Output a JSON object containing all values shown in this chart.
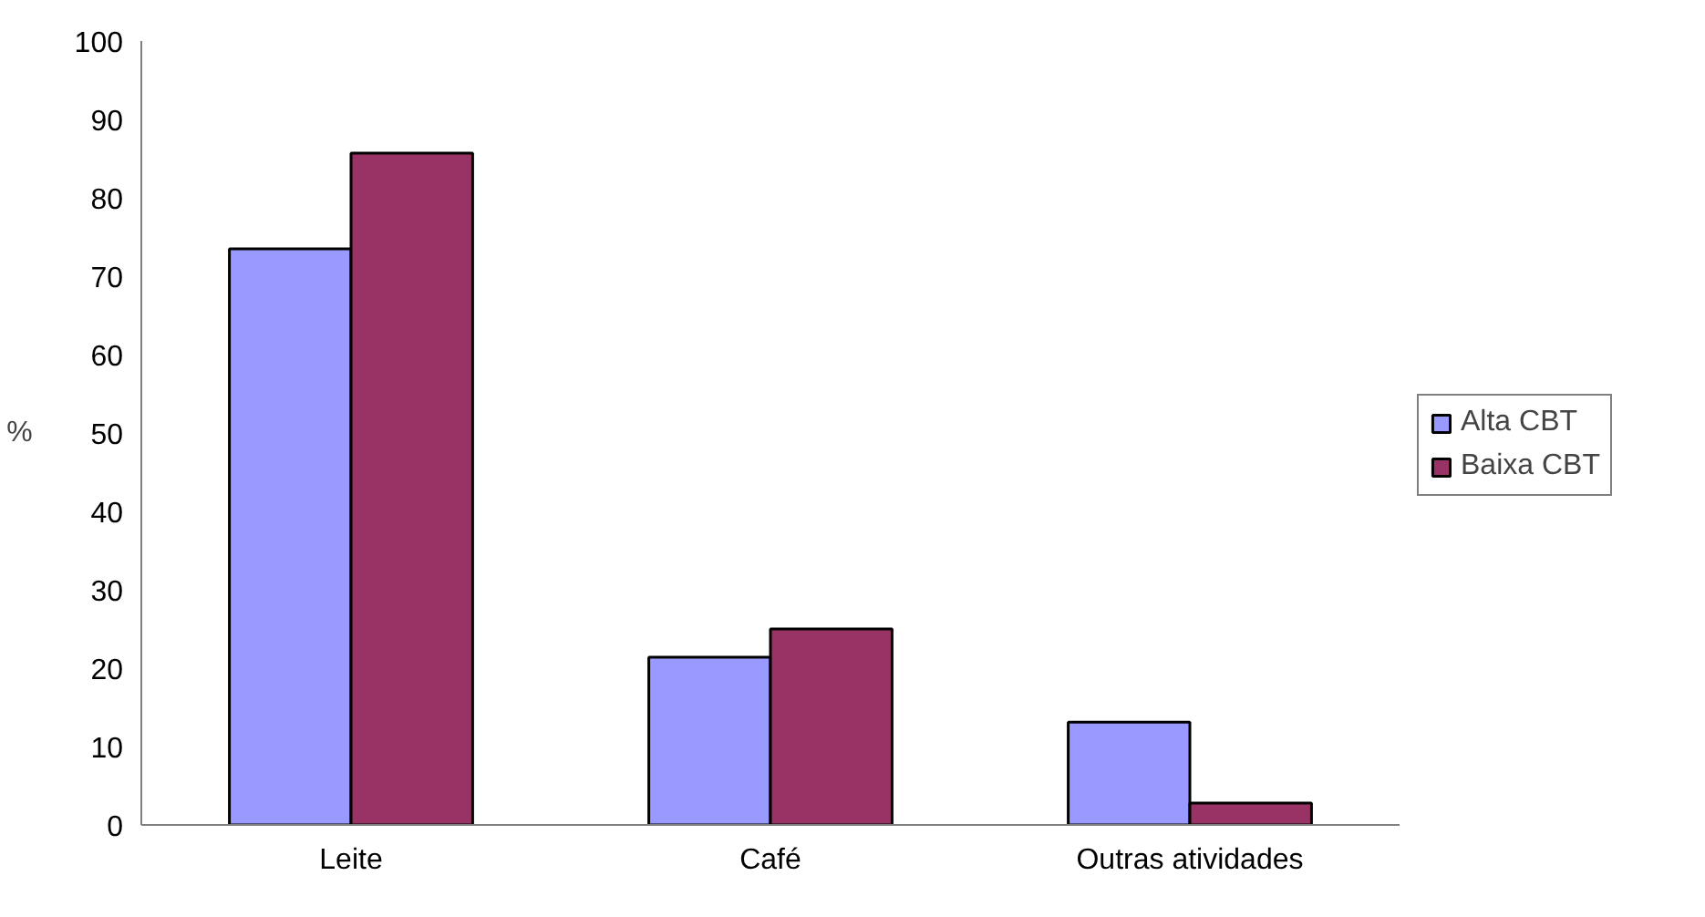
{
  "chart_data": {
    "type": "bar",
    "ylabel": "%",
    "categories": [
      "Leite",
      "Café",
      "Outras atividades"
    ],
    "series": [
      {
        "name": "Alta CBT",
        "color": "#9999ff",
        "values": [
          73.5,
          21.4,
          13.1
        ]
      },
      {
        "name": "Baixa CBT",
        "color": "#993366",
        "values": [
          85.7,
          25.0,
          2.8
        ]
      }
    ],
    "ylim": [
      0,
      100
    ],
    "yticks": [
      0,
      10,
      20,
      30,
      40,
      50,
      60,
      70,
      80,
      90,
      100
    ],
    "grid": false,
    "legend": "right"
  }
}
